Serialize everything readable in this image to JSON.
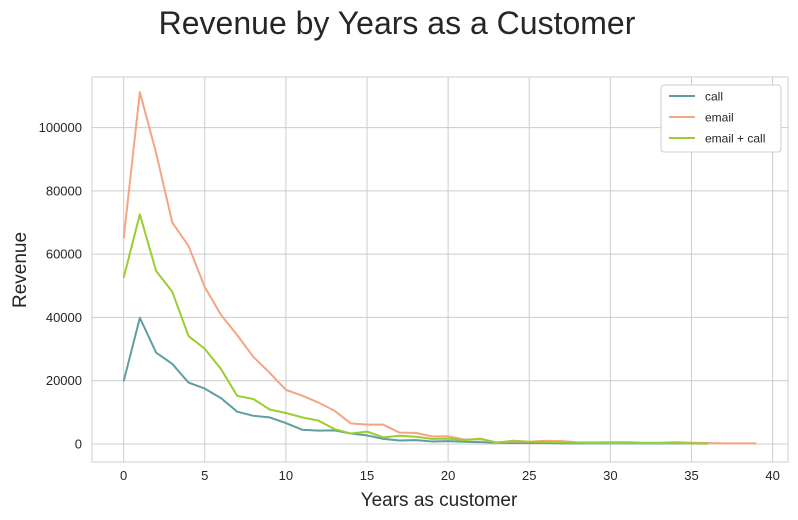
{
  "chart_data": {
    "type": "line",
    "title": "Revenue by Years as a Customer",
    "xlabel": "Years as customer",
    "ylabel": "Revenue",
    "xlim": [
      -1.95,
      40.95
    ],
    "ylim": [
      -5700,
      116000
    ],
    "xticks": [
      0,
      5,
      10,
      15,
      20,
      25,
      30,
      35,
      40
    ],
    "yticks": [
      0,
      20000,
      40000,
      60000,
      80000,
      100000
    ],
    "grid": true,
    "legend_position": "top-right",
    "series": [
      {
        "name": "call",
        "color": "#5f9ea0",
        "x": [
          0,
          1,
          2,
          3,
          4,
          5,
          6,
          7,
          8,
          9,
          10,
          11,
          12,
          13,
          14,
          15,
          16,
          17,
          18,
          19,
          20,
          21,
          22,
          23,
          24,
          25,
          26,
          27,
          28,
          29,
          30,
          31,
          32,
          33,
          34,
          35,
          36
        ],
        "y": [
          19800,
          39900,
          28900,
          25300,
          19400,
          17500,
          14500,
          10200,
          8900,
          8400,
          6600,
          4500,
          4200,
          4300,
          3300,
          2700,
          1600,
          1100,
          1200,
          800,
          900,
          700,
          600,
          400,
          300,
          300,
          300,
          200,
          200,
          200,
          200,
          200,
          200,
          200,
          200,
          150,
          100
        ]
      },
      {
        "name": "email",
        "color": "#f4a582",
        "x": [
          0,
          1,
          2,
          3,
          4,
          5,
          6,
          7,
          8,
          9,
          10,
          11,
          12,
          13,
          14,
          15,
          16,
          17,
          18,
          19,
          20,
          21,
          22,
          23,
          24,
          25,
          26,
          27,
          28,
          29,
          30,
          31,
          32,
          33,
          34,
          35,
          36,
          37,
          38,
          39
        ],
        "y": [
          65000,
          111200,
          92000,
          70000,
          62600,
          49600,
          40800,
          34400,
          27500,
          22500,
          17100,
          15300,
          13100,
          10500,
          6500,
          6100,
          6100,
          3600,
          3500,
          2400,
          2400,
          1400,
          1500,
          500,
          800,
          700,
          1000,
          900,
          500,
          500,
          600,
          600,
          400,
          400,
          600,
          400,
          300,
          200,
          200,
          200
        ]
      },
      {
        "name": "email + call",
        "color": "#9acd32",
        "x": [
          0,
          1,
          2,
          3,
          4,
          5,
          6,
          7,
          8,
          9,
          10,
          11,
          12,
          13,
          14,
          15,
          16,
          17,
          18,
          19,
          20,
          21,
          22,
          23,
          24,
          25,
          26,
          27,
          28,
          29,
          30,
          31,
          32,
          33,
          34,
          35,
          36
        ],
        "y": [
          52500,
          72600,
          54700,
          48100,
          34100,
          30100,
          23700,
          15200,
          14200,
          10900,
          9800,
          8400,
          7400,
          4700,
          3300,
          3900,
          2100,
          2600,
          2300,
          1600,
          1700,
          1200,
          1700,
          400,
          1000,
          700,
          600,
          500,
          400,
          300,
          300,
          300,
          300,
          300,
          300,
          200,
          100
        ]
      }
    ]
  }
}
